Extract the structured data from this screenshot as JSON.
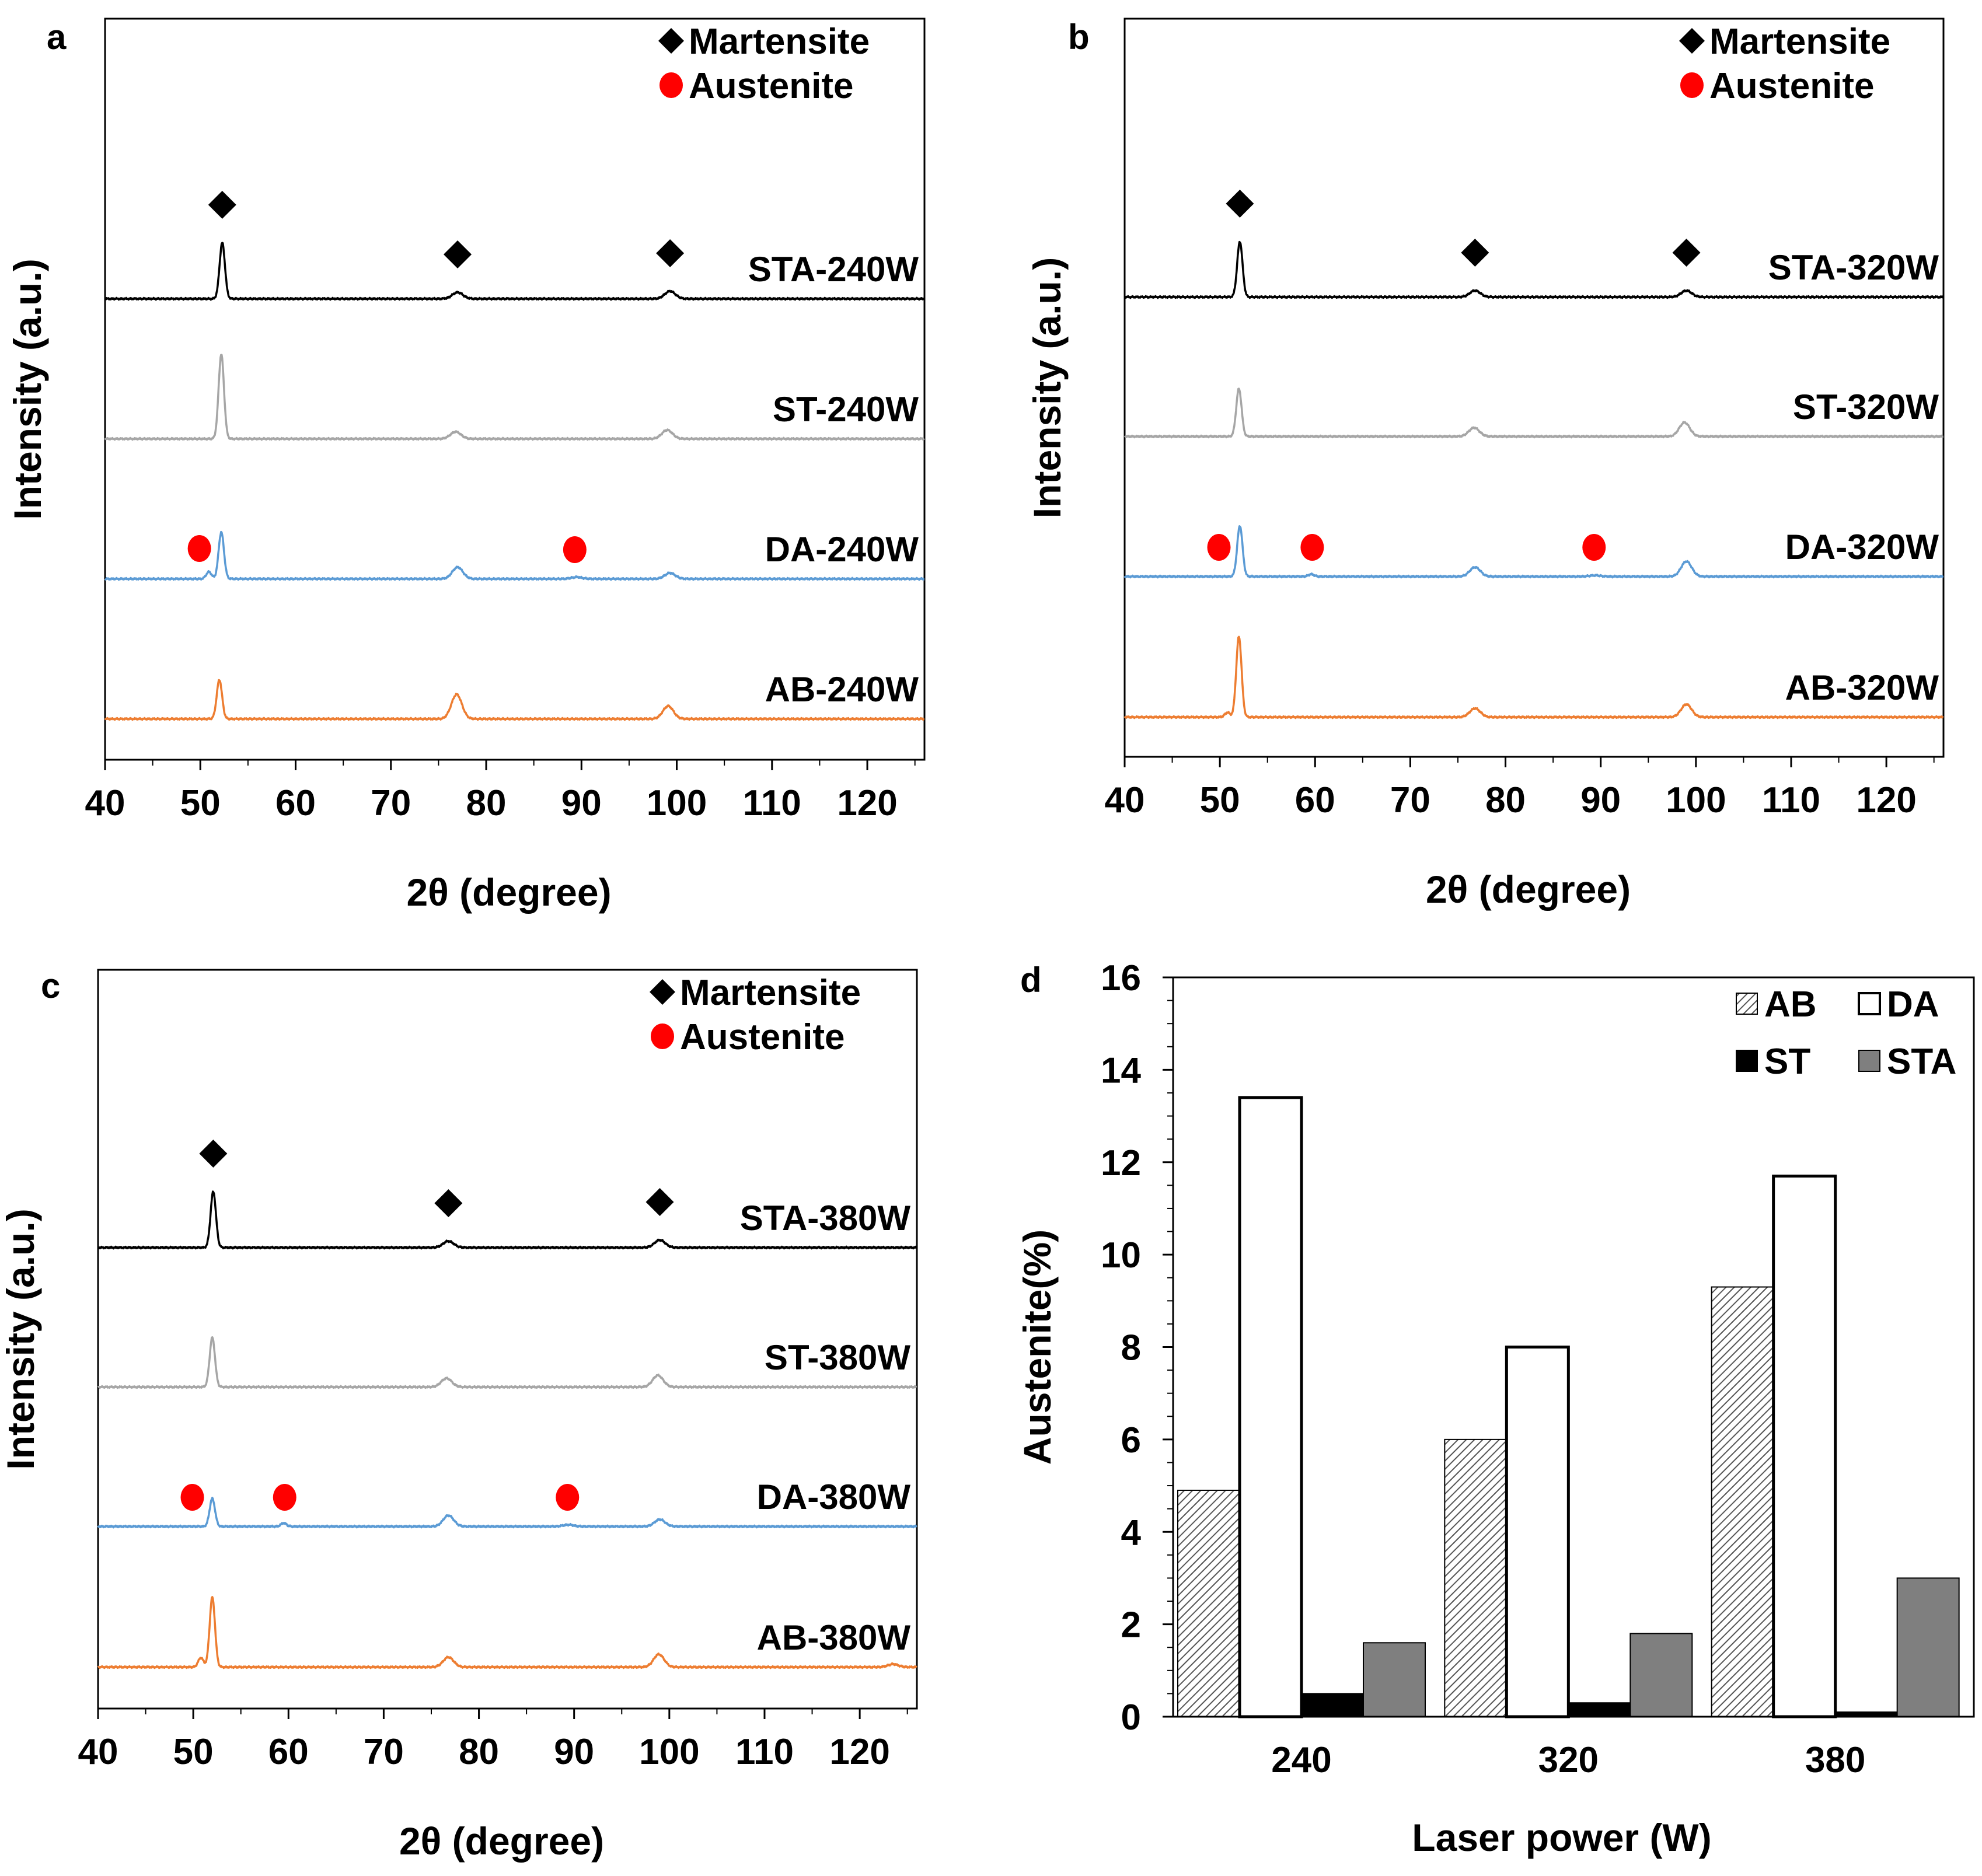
{
  "legend": {
    "martensite": "Martensite",
    "austenite": "Austenite"
  },
  "colors": {
    "STA": "#000000",
    "ST": "#a6a6a6",
    "DA": "#5b9bd5",
    "AB": "#ed7d31",
    "martensite_marker": "#000000",
    "austenite_marker": "#ff0000",
    "bar_AB": "#d9d9d9",
    "bar_DA": "#ffffff",
    "bar_ST": "#000000",
    "bar_STA": "#7f7f7f"
  },
  "chart_data": [
    {
      "panel": "a",
      "type": "line",
      "xlabel": "2θ (degree)",
      "ylabel": "Intensity (a.u.)",
      "xlim": [
        40,
        126
      ],
      "xticks": [
        40,
        50,
        60,
        70,
        80,
        90,
        100,
        110,
        120
      ],
      "legend": [
        "Martensite",
        "Austenite"
      ],
      "series": [
        {
          "name": "STA-240W",
          "key": "STA",
          "peaks": [
            [
              52.3,
              96
            ],
            [
              77.0,
              11
            ],
            [
              99.3,
              13
            ]
          ],
          "martensite_markers": [
            52.3,
            77.0,
            99.3
          ],
          "austenite_markers": []
        },
        {
          "name": "ST-240W",
          "key": "ST",
          "peaks": [
            [
              52.2,
              145
            ],
            [
              76.8,
              12
            ],
            [
              99.0,
              15
            ]
          ],
          "martensite_markers": [],
          "austenite_markers": []
        },
        {
          "name": "DA-240W",
          "key": "DA",
          "peaks": [
            [
              50.9,
              12
            ],
            [
              52.2,
              80
            ],
            [
              77.0,
              20
            ],
            [
              89.5,
              3
            ],
            [
              99.3,
              10
            ]
          ],
          "martensite_markers": [],
          "austenite_markers": [
            49.9,
            89.3
          ]
        },
        {
          "name": "AB-240W",
          "key": "AB",
          "peaks": [
            [
              52.0,
              67
            ],
            [
              76.9,
              42
            ],
            [
              99.1,
              22
            ]
          ],
          "martensite_markers": [],
          "austenite_markers": []
        }
      ]
    },
    {
      "panel": "b",
      "type": "line",
      "xlabel": "2θ (degree)",
      "ylabel": "Intensity (a.u.)",
      "xlim": [
        40,
        126
      ],
      "xticks": [
        40,
        50,
        60,
        70,
        80,
        90,
        100,
        110,
        120
      ],
      "legend": [
        "Martensite",
        "Austenite"
      ],
      "series": [
        {
          "name": "STA-320W",
          "key": "STA",
          "peaks": [
            [
              52.1,
              95
            ],
            [
              76.8,
              11
            ],
            [
              99.0,
              11
            ]
          ],
          "martensite_markers": [
            52.1,
            76.8,
            99.0
          ],
          "austenite_markers": []
        },
        {
          "name": "ST-320W",
          "key": "ST",
          "peaks": [
            [
              52.0,
              82
            ],
            [
              76.7,
              15
            ],
            [
              98.8,
              24
            ]
          ],
          "martensite_markers": [],
          "austenite_markers": []
        },
        {
          "name": "DA-320W",
          "key": "DA",
          "peaks": [
            [
              52.1,
              87
            ],
            [
              59.6,
              4
            ],
            [
              76.8,
              16
            ],
            [
              89.4,
              2
            ],
            [
              99.0,
              26
            ]
          ],
          "martensite_markers": [],
          "austenite_markers": [
            49.9,
            59.7,
            89.3
          ]
        },
        {
          "name": "AB-320W",
          "key": "AB",
          "peaks": [
            [
              50.8,
              8
            ],
            [
              52.0,
              138
            ],
            [
              76.8,
              15
            ],
            [
              99.0,
              22
            ]
          ],
          "martensite_markers": [],
          "austenite_markers": []
        }
      ]
    },
    {
      "panel": "c",
      "type": "line",
      "xlabel": "2θ (degree)",
      "ylabel": "Intensity (a.u.)",
      "xlim": [
        40,
        126
      ],
      "xticks": [
        40,
        50,
        60,
        70,
        80,
        90,
        100,
        110,
        120
      ],
      "legend": [
        "Martensite",
        "Austenite"
      ],
      "series": [
        {
          "name": "STA-380W",
          "key": "STA",
          "peaks": [
            [
              52.1,
              96
            ],
            [
              76.8,
              11
            ],
            [
              99.0,
              13
            ]
          ],
          "martensite_markers": [
            52.1,
            76.8,
            99.0
          ],
          "austenite_markers": []
        },
        {
          "name": "ST-380W",
          "key": "ST",
          "peaks": [
            [
              52.0,
              85
            ],
            [
              76.6,
              15
            ],
            [
              98.8,
              20
            ]
          ],
          "martensite_markers": [],
          "austenite_markers": []
        },
        {
          "name": "DA-380W",
          "key": "DA",
          "peaks": [
            [
              52.0,
              48
            ],
            [
              59.5,
              6
            ],
            [
              76.8,
              19
            ],
            [
              89.4,
              3
            ],
            [
              99.0,
              12
            ]
          ],
          "martensite_markers": [],
          "austenite_markers": [
            49.9,
            59.6,
            89.3
          ]
        },
        {
          "name": "AB-380W",
          "key": "AB",
          "peaks": [
            [
              50.8,
              16
            ],
            [
              52.0,
              120
            ],
            [
              76.8,
              17
            ],
            [
              98.9,
              22
            ],
            [
              123.5,
              5
            ]
          ],
          "martensite_markers": [],
          "austenite_markers": []
        }
      ]
    },
    {
      "panel": "d",
      "type": "bar",
      "xlabel": "Laser power (W)",
      "ylabel": "Austenite(%)",
      "ylim": [
        0,
        16
      ],
      "yticks": [
        0,
        2,
        4,
        6,
        8,
        10,
        12,
        14,
        16
      ],
      "categories": [
        "240",
        "320",
        "380"
      ],
      "series": [
        {
          "name": "AB",
          "values": [
            4.9,
            6.0,
            9.3
          ]
        },
        {
          "name": "DA",
          "values": [
            13.4,
            8.0,
            11.7
          ]
        },
        {
          "name": "ST",
          "values": [
            0.5,
            0.3,
            0.1
          ]
        },
        {
          "name": "STA",
          "values": [
            1.6,
            1.8,
            3.0
          ]
        }
      ]
    }
  ]
}
